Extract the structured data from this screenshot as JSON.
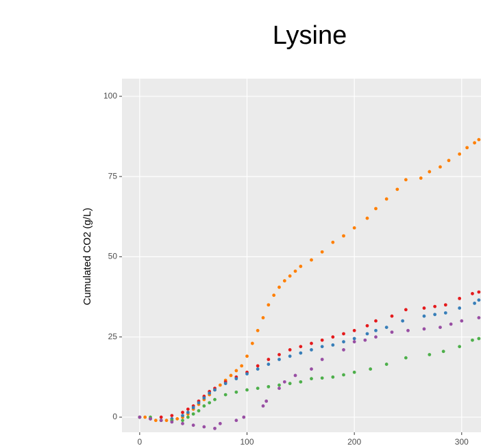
{
  "chart_data": {
    "type": "scatter",
    "title": "Lysine",
    "y_label": "Cumulated CO2 (g/L)",
    "xlim": [
      -16.5,
      318
    ],
    "ylim": [
      -4.7,
      105.5
    ],
    "xticks": [
      0,
      100,
      200,
      300
    ],
    "yticks": [
      0,
      25,
      50,
      75,
      100
    ],
    "grid": true,
    "series": [
      {
        "color": "#ff7f00",
        "x": [
          0,
          5,
          10,
          15,
          20,
          25,
          30,
          35,
          40,
          45,
          50,
          55,
          60,
          65,
          70,
          75,
          80,
          85,
          90,
          95,
          100,
          105,
          110,
          115,
          120,
          125,
          130,
          135,
          140,
          145,
          150,
          160,
          170,
          180,
          190,
          200,
          212,
          220,
          230,
          240,
          248,
          262,
          270,
          280,
          288,
          298,
          305,
          312,
          316
        ],
        "values": [
          0,
          0,
          -0.5,
          -1,
          -1,
          -1,
          -1,
          -0.5,
          0,
          1,
          2.5,
          4,
          5.5,
          7,
          8.5,
          10,
          11.5,
          13,
          14.5,
          16,
          19,
          23,
          27,
          31,
          35,
          38,
          40.5,
          42.5,
          44,
          45.5,
          47,
          49,
          51.5,
          54.5,
          56.5,
          59,
          62,
          65,
          68,
          71,
          74,
          74.5,
          76.5,
          78,
          80,
          82,
          84,
          85.5,
          86.5
        ]
      },
      {
        "color": "#e41a1c",
        "x": [
          0,
          10,
          20,
          30,
          40,
          45,
          50,
          55,
          60,
          65,
          70,
          80,
          90,
          100,
          110,
          120,
          130,
          140,
          150,
          160,
          170,
          180,
          190,
          200,
          212,
          220,
          235,
          248,
          265,
          275,
          285,
          298,
          310,
          316
        ],
        "values": [
          0,
          -0.5,
          0,
          0.5,
          1.5,
          2.5,
          3.5,
          5,
          6.5,
          8,
          9,
          11,
          12.5,
          14,
          16,
          18,
          19.5,
          21,
          22,
          23,
          24,
          25,
          26,
          27,
          28.5,
          30,
          31.5,
          33.5,
          34,
          34.5,
          35,
          37,
          38.5,
          39
        ]
      },
      {
        "color": "#377eb8",
        "x": [
          0,
          10,
          20,
          30,
          40,
          45,
          50,
          55,
          60,
          65,
          70,
          80,
          90,
          100,
          110,
          120,
          130,
          140,
          150,
          160,
          170,
          180,
          190,
          200,
          212,
          220,
          230,
          245,
          265,
          275,
          285,
          298,
          312,
          316
        ],
        "values": [
          0,
          -0.5,
          -1,
          -0.5,
          0.5,
          1.5,
          3,
          4.5,
          6,
          7.5,
          8.5,
          10.5,
          12,
          13.5,
          15,
          16.5,
          18,
          19,
          20,
          21,
          22,
          22.5,
          23.5,
          24.5,
          26,
          27,
          28,
          30,
          31.5,
          32,
          32.5,
          34,
          35.5,
          36.5
        ]
      },
      {
        "color": "#4daf4a",
        "x": [
          0,
          10,
          20,
          30,
          40,
          45,
          50,
          55,
          60,
          65,
          70,
          80,
          90,
          100,
          110,
          120,
          130,
          140,
          150,
          160,
          170,
          180,
          190,
          200,
          215,
          230,
          248,
          270,
          283,
          298,
          310,
          316
        ],
        "values": [
          0,
          0,
          -1,
          -1,
          -1,
          0,
          1,
          2,
          3.5,
          4.5,
          5.5,
          7,
          7.8,
          8.5,
          9,
          9.5,
          10,
          10.5,
          11,
          12,
          12.2,
          12.5,
          13.2,
          14,
          15,
          16.5,
          18.5,
          19.5,
          20.5,
          22,
          24,
          24.5
        ]
      },
      {
        "color": "#984ea3",
        "x": [
          0,
          10,
          20,
          30,
          40,
          50,
          60,
          70,
          75,
          90,
          97,
          115,
          118,
          130,
          135,
          145,
          160,
          170,
          190,
          200,
          210,
          220,
          235,
          250,
          265,
          280,
          290,
          300,
          316
        ],
        "values": [
          0,
          -0.5,
          -1,
          -1.5,
          -2,
          -2.5,
          -3,
          -3.5,
          -2,
          -1,
          0,
          3.5,
          5,
          9,
          11,
          13,
          15,
          18,
          21,
          23.5,
          24,
          25,
          26.5,
          27,
          27.5,
          28,
          29,
          30,
          31
        ]
      }
    ]
  }
}
